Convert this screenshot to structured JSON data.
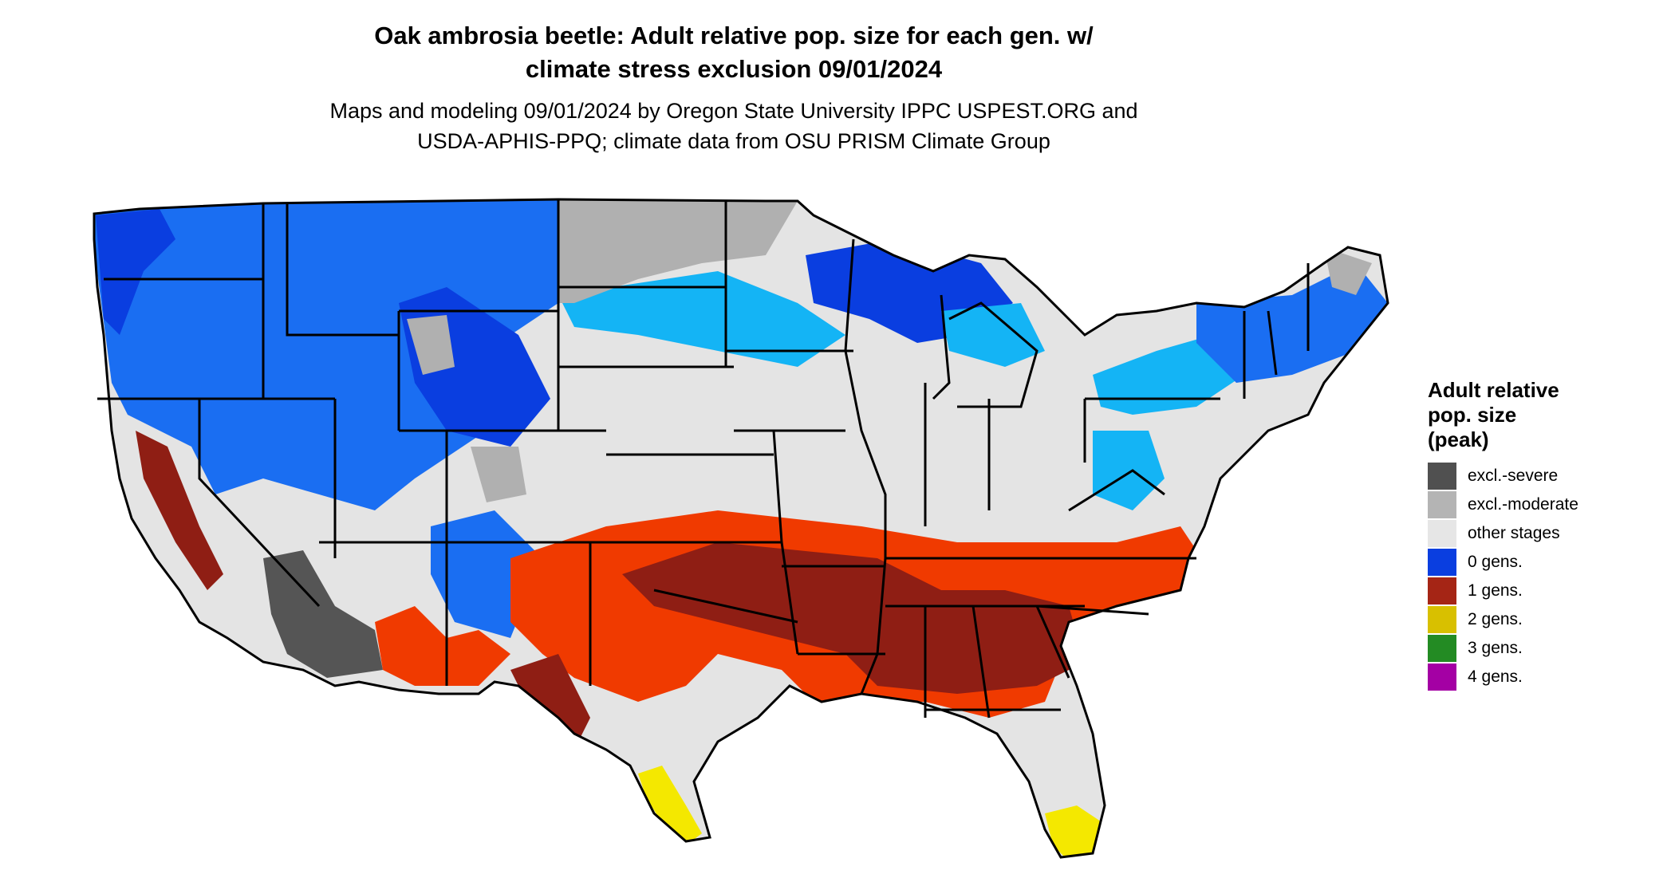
{
  "title": {
    "line1": "Oak ambrosia beetle: Adult relative pop. size for each gen. w/",
    "line2": "climate stress exclusion 09/01/2024"
  },
  "subtitle": {
    "line1": "Maps and modeling 09/01/2024 by Oregon State University IPPC USPEST.ORG and",
    "line2": "USDA-APHIS-PPQ; climate data from OSU PRISM Climate Group"
  },
  "legend": {
    "title_line1": "Adult relative",
    "title_line2": "pop. size",
    "title_line3": "(peak)",
    "items": [
      {
        "label": "excl.-severe",
        "color": "#505050"
      },
      {
        "label": "excl.-moderate",
        "color": "#b4b4b4"
      },
      {
        "label": "other stages",
        "color": "#e6e6e6"
      },
      {
        "label": "0 gens.",
        "color": "#0a3ee0"
      },
      {
        "label": "1 gens.",
        "color": "#a52515"
      },
      {
        "label": "2 gens.",
        "color": "#d8c000"
      },
      {
        "label": "3 gens.",
        "color": "#238b23"
      },
      {
        "label": "4 gens.",
        "color": "#a400a4"
      }
    ]
  },
  "map_colors": {
    "land": "#e4e4e4",
    "excl_moderate": "#b0b0b0",
    "excl_severe": "#555555",
    "blue_deep": "#0a3ee0",
    "blue_mid": "#1a6ef2",
    "blue_light": "#14b4f5",
    "red_dark": "#8f1e14",
    "red_orange": "#f03a00",
    "yellow": "#f4e800",
    "border": "#000000"
  }
}
